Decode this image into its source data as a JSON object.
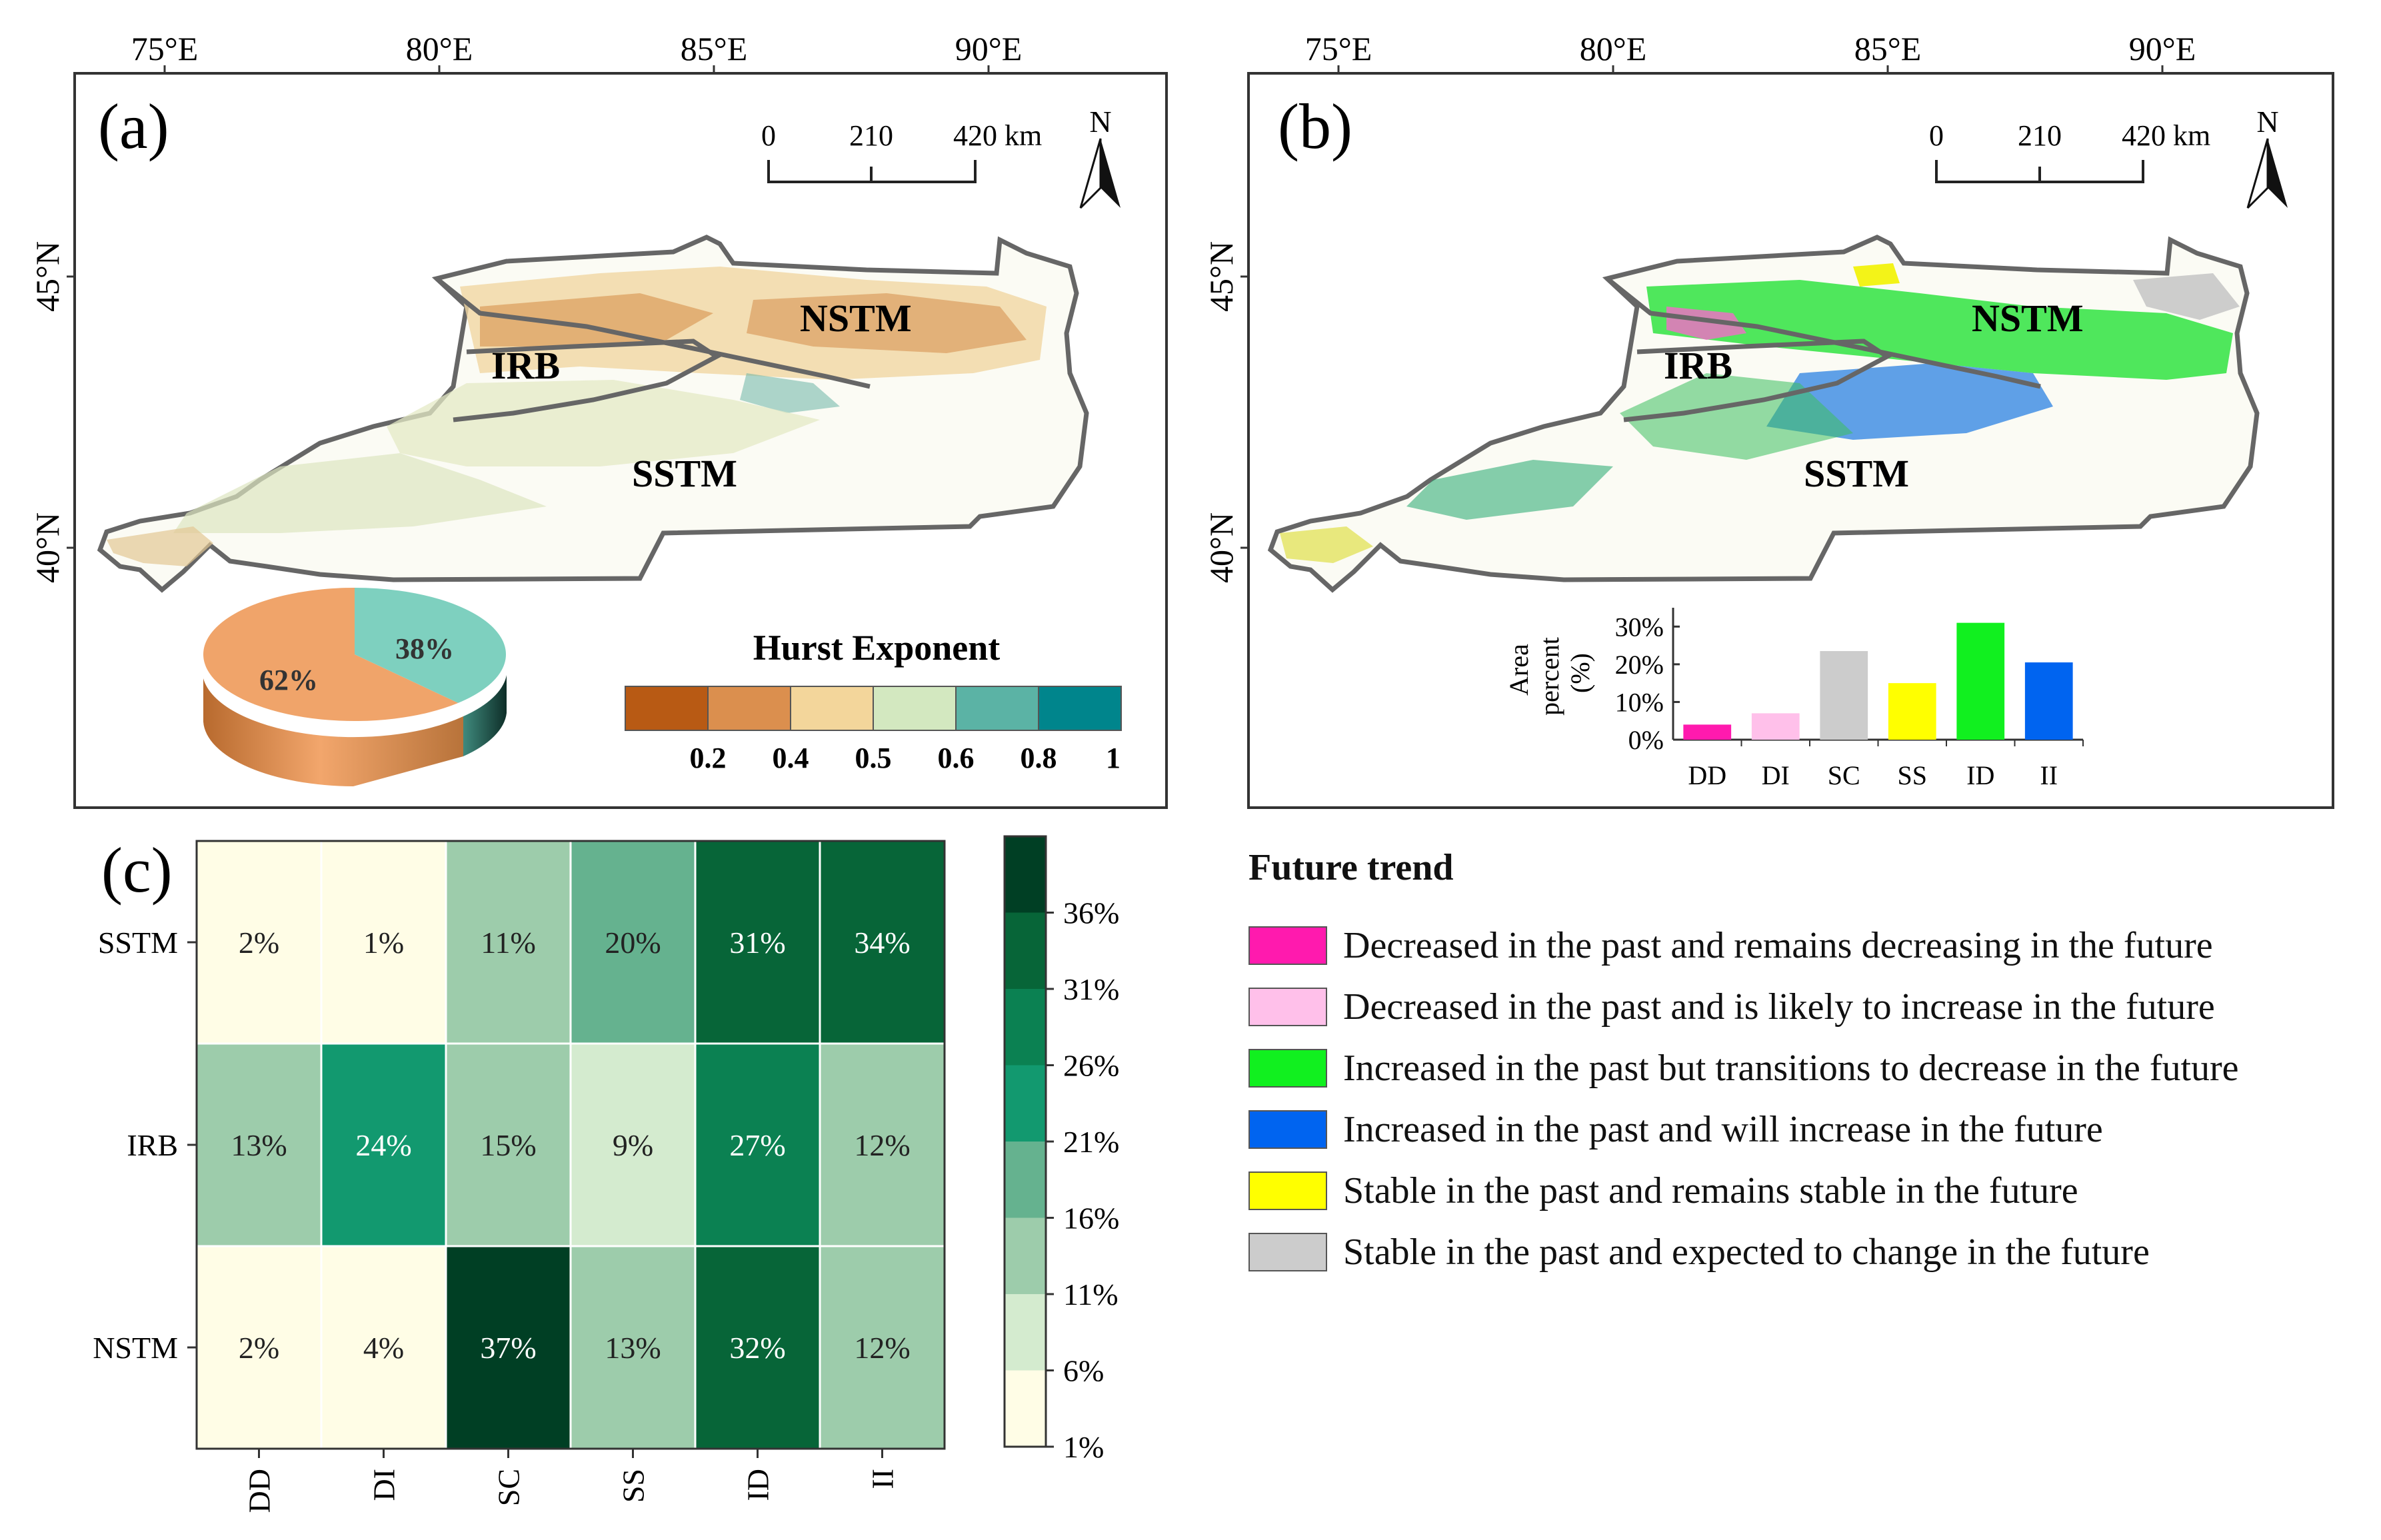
{
  "panel_a": {
    "label": "(a)",
    "lon_ticks": [
      "75°E",
      "80°E",
      "85°E",
      "90°E"
    ],
    "lat_ticks": [
      "45°N",
      "40°N"
    ],
    "scale_ticks": [
      "0",
      "210",
      "420 km"
    ],
    "north_label": "N",
    "regions": [
      "NSTM",
      "IRB",
      "SSTM"
    ],
    "pie": {
      "slices": [
        {
          "label": "62%",
          "value": 62,
          "color": "#F0A46A"
        },
        {
          "label": "38%",
          "value": 38,
          "color": "#7ED0BF"
        }
      ]
    },
    "colorbar": {
      "title": "Hurst Exponent",
      "colors": [
        "#B85A14",
        "#DB8F4E",
        "#F3D69B",
        "#D3E8C0",
        "#5BB3A5",
        "#00858C"
      ],
      "tick_labels": [
        "0.2",
        "0.4",
        "0.5",
        "0.6",
        "0.8",
        "1"
      ]
    }
  },
  "panel_b": {
    "label": "(b)",
    "lon_ticks": [
      "75°E",
      "80°E",
      "85°E",
      "90°E"
    ],
    "lat_ticks": [
      "45°N",
      "40°N"
    ],
    "scale_ticks": [
      "0",
      "210",
      "420 km"
    ],
    "north_label": "N",
    "regions": [
      "NSTM",
      "IRB",
      "SSTM"
    ]
  },
  "chart_data": [
    {
      "type": "bar",
      "id": "area-percent-inset",
      "categories": [
        "DD",
        "DI",
        "SC",
        "SS",
        "ID",
        "II"
      ],
      "values": [
        4,
        7,
        23.5,
        15,
        31,
        20.5
      ],
      "colors": [
        "#FF1AAE",
        "#FFC0EA",
        "#CCCCCC",
        "#FFFF00",
        "#11F01F",
        "#0064F0"
      ],
      "ylabel": [
        "Area",
        "percent",
        "(%)"
      ],
      "yticks": [
        "0%",
        "10%",
        "20%",
        "30%"
      ],
      "ylim": [
        0,
        35
      ]
    },
    {
      "type": "heatmap",
      "id": "panel-c",
      "label": "(c)",
      "rows": [
        "SSTM",
        "IRB",
        "NSTM"
      ],
      "columns": [
        "DD",
        "DI",
        "SC",
        "SS",
        "ID",
        "II"
      ],
      "values": [
        [
          2,
          1,
          11,
          20,
          31,
          34
        ],
        [
          13,
          24,
          15,
          9,
          27,
          12
        ],
        [
          2,
          4,
          37,
          13,
          32,
          12
        ]
      ],
      "cell_labels": [
        [
          "2%",
          "1%",
          "11%",
          "20%",
          "31%",
          "34%"
        ],
        [
          "13%",
          "24%",
          "15%",
          "9%",
          "27%",
          "12%"
        ],
        [
          "2%",
          "4%",
          "37%",
          "13%",
          "32%",
          "12%"
        ]
      ],
      "colorbar_ticks": [
        "36%",
        "31%",
        "26%",
        "21%",
        "16%",
        "11%",
        "6%",
        "1%"
      ],
      "colorbar_colors": [
        "#FFFDE6",
        "#D4EBCF",
        "#9DCCAB",
        "#65B28F",
        "#12996F",
        "#0B8152",
        "#076538",
        "#003F24"
      ]
    }
  ],
  "legend": {
    "title": "Future trend",
    "items": [
      {
        "label": "Decreased in the past and remains decreasing in the future",
        "color": "#FF1AAE"
      },
      {
        "label": "Decreased in the past and is likely to increase in the future",
        "color": "#FFC0EA"
      },
      {
        "label": "Increased in the past but transitions to decrease in the future",
        "color": "#11F01F"
      },
      {
        "label": "Increased in the past and will increase in the future",
        "color": "#0064F0"
      },
      {
        "label": "Stable in the past and remains stable in the future",
        "color": "#FFFF00"
      },
      {
        "label": "Stable in the past and expected to change in the future",
        "color": "#CCCCCC"
      }
    ]
  }
}
